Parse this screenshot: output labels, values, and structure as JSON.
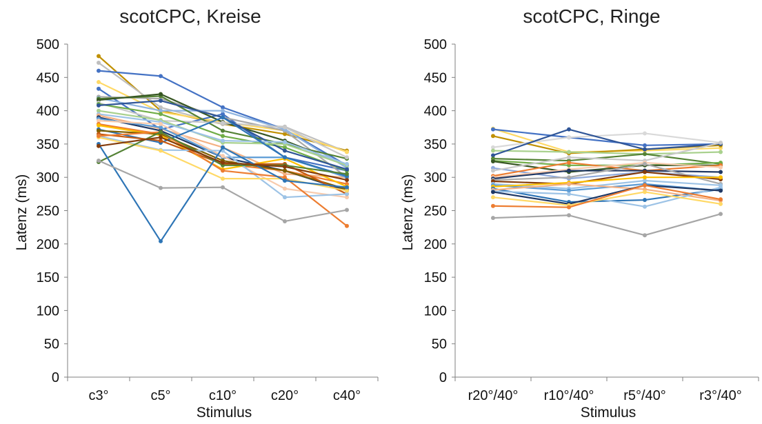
{
  "chart_data": [
    {
      "type": "line",
      "title": "scotCPC, Kreise",
      "xlabel": "Stimulus",
      "ylabel": "Latenz (ms)",
      "categories": [
        "c3°",
        "c5°",
        "c10°",
        "c20°",
        "c40°"
      ],
      "ylim": [
        0,
        500
      ],
      "yticks": [
        "0",
        "50",
        "100",
        "150",
        "200",
        "250",
        "300",
        "350",
        "400",
        "450",
        "500"
      ],
      "grid": false,
      "legend": "none",
      "series": [
        {
          "color": "#C09000",
          "values": [
            482,
            400,
            380,
            365,
            340
          ]
        },
        {
          "color": "#BFBFBF",
          "values": [
            472,
            405,
            380,
            376,
            338
          ]
        },
        {
          "color": "#4472C4",
          "values": [
            460,
            452,
            405,
            372,
            318
          ]
        },
        {
          "color": "#FFD966",
          "values": [
            443,
            398,
            383,
            370,
            338
          ]
        },
        {
          "color": "#4472C4",
          "values": [
            433,
            372,
            395,
            330,
            310
          ]
        },
        {
          "color": "#A9A9A9",
          "values": [
            421,
            418,
            390,
            370,
            300
          ]
        },
        {
          "color": "#8FB4E0",
          "values": [
            419,
            400,
            400,
            372,
            314
          ]
        },
        {
          "color": "#548235",
          "values": [
            418,
            422,
            370,
            350,
            328
          ]
        },
        {
          "color": "#375623",
          "values": [
            416,
            425,
            383,
            355,
            318
          ]
        },
        {
          "color": "#C9C9C9",
          "values": [
            412,
            385,
            382,
            375,
            330
          ]
        },
        {
          "color": "#70AD47",
          "values": [
            410,
            395,
            362,
            345,
            310
          ]
        },
        {
          "color": "#2F5597",
          "values": [
            408,
            415,
            390,
            340,
            312
          ]
        },
        {
          "color": "#A9D18E",
          "values": [
            400,
            386,
            352,
            350,
            318
          ]
        },
        {
          "color": "#9DC3E6",
          "values": [
            395,
            383,
            355,
            353,
            320
          ]
        },
        {
          "color": "#F4B183",
          "values": [
            393,
            373,
            345,
            305,
            300
          ]
        },
        {
          "color": "#203864",
          "values": [
            390,
            370,
            330,
            310,
            280
          ]
        },
        {
          "color": "#5B9BD5",
          "values": [
            388,
            375,
            330,
            330,
            300
          ]
        },
        {
          "color": "#F8CBAD",
          "values": [
            385,
            380,
            332,
            283,
            270
          ]
        },
        {
          "color": "#ED7D31",
          "values": [
            380,
            365,
            320,
            310,
            290
          ]
        },
        {
          "color": "#FFC000",
          "values": [
            378,
            363,
            312,
            328,
            286
          ]
        },
        {
          "color": "#2E75B6",
          "values": [
            372,
            352,
            390,
            330,
            302
          ]
        },
        {
          "color": "#7F6000",
          "values": [
            370,
            365,
            325,
            310,
            282
          ]
        },
        {
          "color": "#C55A11",
          "values": [
            365,
            355,
            320,
            320,
            275
          ]
        },
        {
          "color": "#9DC3E6",
          "values": [
            362,
            341,
            340,
            270,
            275
          ]
        },
        {
          "color": "#FFD966",
          "values": [
            360,
            340,
            298,
            298,
            280
          ]
        },
        {
          "color": "#ED7D31",
          "values": [
            362,
            368,
            310,
            300,
            227
          ]
        },
        {
          "color": "#548235",
          "values": [
            323,
            368,
            318,
            318,
            305
          ]
        },
        {
          "color": "#2E75B6",
          "values": [
            350,
            204,
            345,
            295,
            285
          ]
        },
        {
          "color": "#A6A6A6",
          "values": [
            325,
            284,
            285,
            234,
            251
          ]
        },
        {
          "color": "#843C0C",
          "values": [
            347,
            360,
            322,
            316,
            296
          ]
        }
      ]
    },
    {
      "type": "line",
      "title": "scotCPC, Ringe",
      "xlabel": "Stimulus",
      "ylabel": "Latenz (ms)",
      "categories": [
        "r20°/40°",
        "r10°/40°",
        "r5°/40°",
        "r3°/40°"
      ],
      "ylim": [
        0,
        500
      ],
      "yticks": [
        "0",
        "50",
        "100",
        "150",
        "200",
        "250",
        "300",
        "350",
        "400",
        "450",
        "500"
      ],
      "grid": false,
      "legend": "none",
      "series": [
        {
          "color": "#FFD966",
          "values": [
            373,
            338,
            340,
            344
          ]
        },
        {
          "color": "#4472C4",
          "values": [
            372,
            360,
            348,
            350
          ]
        },
        {
          "color": "#C09000",
          "values": [
            362,
            336,
            342,
            348
          ]
        },
        {
          "color": "#D9D9D9",
          "values": [
            345,
            360,
            366,
            352
          ]
        },
        {
          "color": "#A9D18E",
          "values": [
            340,
            338,
            335,
            338
          ]
        },
        {
          "color": "#2F5597",
          "values": [
            333,
            372,
            342,
            350
          ]
        },
        {
          "color": "#548235",
          "values": [
            328,
            325,
            335,
            320
          ]
        },
        {
          "color": "#70AD47",
          "values": [
            325,
            318,
            318,
            322
          ]
        },
        {
          "color": "#375623",
          "values": [
            324,
            308,
            318,
            318
          ]
        },
        {
          "color": "#8FAADC",
          "values": [
            314,
            298,
            308,
            300
          ]
        },
        {
          "color": "#C9C9C9",
          "values": [
            310,
            330,
            325,
            352
          ]
        },
        {
          "color": "#ED7D31",
          "values": [
            302,
            322,
            310,
            318
          ]
        },
        {
          "color": "#F8CBAD",
          "values": [
            300,
            312,
            322,
            315
          ]
        },
        {
          "color": "#203864",
          "values": [
            298,
            310,
            310,
            308
          ]
        },
        {
          "color": "#A9A9A9",
          "values": [
            296,
            300,
            320,
            290
          ]
        },
        {
          "color": "#843C0C",
          "values": [
            294,
            290,
            308,
            297
          ]
        },
        {
          "color": "#9DC3E6",
          "values": [
            290,
            283,
            295,
            288
          ]
        },
        {
          "color": "#5B9BD5",
          "values": [
            288,
            280,
            290,
            280
          ]
        },
        {
          "color": "#FFC000",
          "values": [
            286,
            292,
            300,
            300
          ]
        },
        {
          "color": "#2E75B6",
          "values": [
            283,
            263,
            266,
            282
          ]
        },
        {
          "color": "#F4B183",
          "values": [
            281,
            290,
            282,
            265
          ]
        },
        {
          "color": "#9DC3E6",
          "values": [
            279,
            275,
            256,
            285
          ]
        },
        {
          "color": "#203864",
          "values": [
            278,
            260,
            288,
            280
          ]
        },
        {
          "color": "#FFD966",
          "values": [
            270,
            258,
            278,
            260
          ]
        },
        {
          "color": "#ED7D31",
          "values": [
            257,
            255,
            288,
            267
          ]
        },
        {
          "color": "#A6A6A6",
          "values": [
            239,
            243,
            213,
            245
          ]
        }
      ]
    }
  ]
}
